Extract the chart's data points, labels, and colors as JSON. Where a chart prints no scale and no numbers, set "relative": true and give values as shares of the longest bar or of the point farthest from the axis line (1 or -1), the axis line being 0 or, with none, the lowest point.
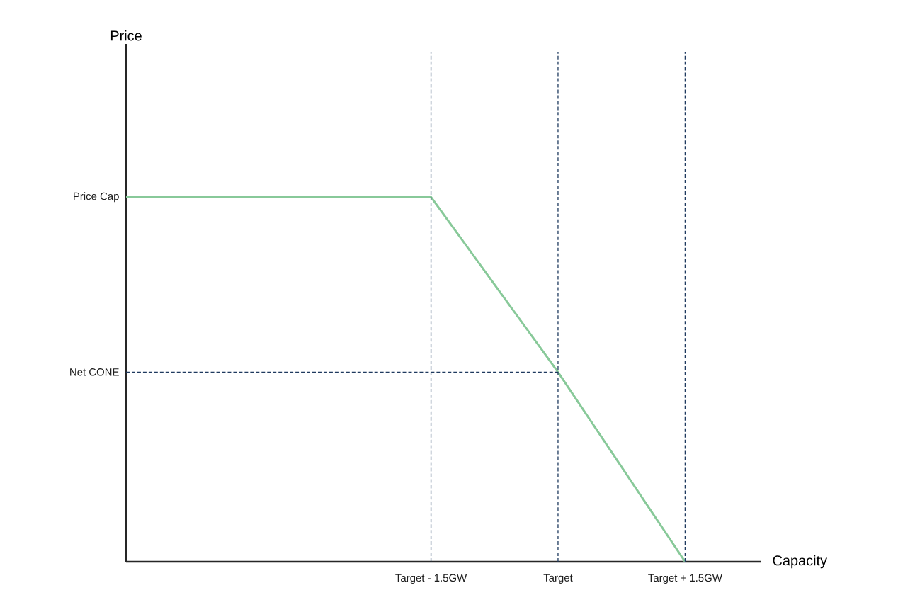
{
  "chart_data": {
    "type": "line",
    "xlabel": "Capacity",
    "relative": true,
    "annotations": [
      "Price",
      {
        "text": "Price Cap",
        "x": -5.1,
        "y": 1
      }
    ],
    "x": [
      -5.1,
      -1.5,
      0,
      1.5
    ],
    "series": [
      {
        "color": "#88c999",
        "values": [
          1,
          1,
          0.52,
          0
        ]
      }
    ],
    "xlim": [
      -5.1,
      2.4
    ],
    "xticks": [
      {
        "value": -1.5,
        "label": "Target - 1.5GW"
      },
      {
        "value": 0,
        "label": "Target"
      },
      {
        "value": 1.5,
        "label": "Target + 1.5GW"
      }
    ],
    "ref_lines": [
      {
        "axis": "x",
        "value": -1.5,
        "label": null,
        "color": "#1f3a5f",
        "line_style": "dashed"
      },
      {
        "axis": "x",
        "value": 0,
        "label": null,
        "color": "#1f3a5f",
        "line_style": "dashed"
      },
      {
        "axis": "x",
        "value": 1.5,
        "label": null,
        "color": "#1f3a5f",
        "line_style": "dashed"
      },
      {
        "axis": "y",
        "value": 0.52,
        "label": "Net CONE",
        "color": "#1f3a5f",
        "line_style": "dashed"
      }
    ]
  }
}
